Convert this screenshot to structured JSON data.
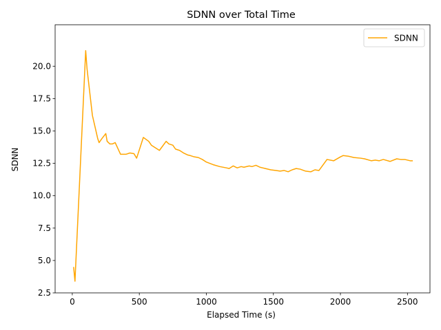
{
  "chart_data": {
    "type": "line",
    "title": "SDNN over Total Time",
    "xlabel": "Elapsed Time (s)",
    "ylabel": "SDNN",
    "xlim": [
      -128,
      2668
    ],
    "ylim": [
      2.5,
      23.2
    ],
    "xticks": [
      0,
      500,
      1000,
      1500,
      2000,
      2500
    ],
    "xtick_labels": [
      "0",
      "500",
      "1000",
      "1500",
      "2000",
      "2500"
    ],
    "yticks": [
      2.5,
      5.0,
      7.5,
      10.0,
      12.5,
      15.0,
      17.5,
      20.0
    ],
    "ytick_labels": [
      "2.5",
      "5.0",
      "7.5",
      "10.0",
      "12.5",
      "15.0",
      "17.5",
      "20.0"
    ],
    "grid": false,
    "legend": {
      "position": "top-right",
      "entries": [
        "SDNN"
      ]
    },
    "colors": {
      "SDNN": "#ffa500"
    },
    "series": [
      {
        "name": "SDNN",
        "x": [
          10,
          20,
          100,
          110,
          130,
          150,
          170,
          190,
          200,
          220,
          250,
          260,
          280,
          300,
          320,
          360,
          400,
          430,
          460,
          480,
          530,
          570,
          590,
          620,
          650,
          700,
          720,
          750,
          770,
          800,
          830,
          860,
          880,
          910,
          940,
          970,
          1000,
          1050,
          1100,
          1150,
          1170,
          1200,
          1230,
          1260,
          1280,
          1320,
          1340,
          1370,
          1400,
          1440,
          1480,
          1520,
          1550,
          1580,
          1610,
          1640,
          1670,
          1700,
          1740,
          1780,
          1810,
          1840,
          1900,
          1950,
          2000,
          2020,
          2060,
          2100,
          2150,
          2180,
          2230,
          2260,
          2290,
          2320,
          2370,
          2420,
          2450,
          2480,
          2520,
          2540
        ],
        "values": [
          4.5,
          3.4,
          21.2,
          19.8,
          18.0,
          16.2,
          15.3,
          14.4,
          14.1,
          14.4,
          14.8,
          14.2,
          14.0,
          14.0,
          14.1,
          13.2,
          13.2,
          13.3,
          13.25,
          12.9,
          14.5,
          14.2,
          13.9,
          13.7,
          13.5,
          14.2,
          14.0,
          13.9,
          13.6,
          13.5,
          13.3,
          13.15,
          13.1,
          13.0,
          12.95,
          12.8,
          12.6,
          12.4,
          12.25,
          12.15,
          12.1,
          12.3,
          12.15,
          12.25,
          12.2,
          12.3,
          12.25,
          12.35,
          12.2,
          12.1,
          12.0,
          11.95,
          11.9,
          11.95,
          11.85,
          12.0,
          12.1,
          12.05,
          11.9,
          11.85,
          12.0,
          11.95,
          12.8,
          12.7,
          13.0,
          13.1,
          13.05,
          12.95,
          12.9,
          12.85,
          12.7,
          12.75,
          12.7,
          12.8,
          12.65,
          12.85,
          12.8,
          12.8,
          12.7,
          12.7
        ]
      }
    ]
  }
}
